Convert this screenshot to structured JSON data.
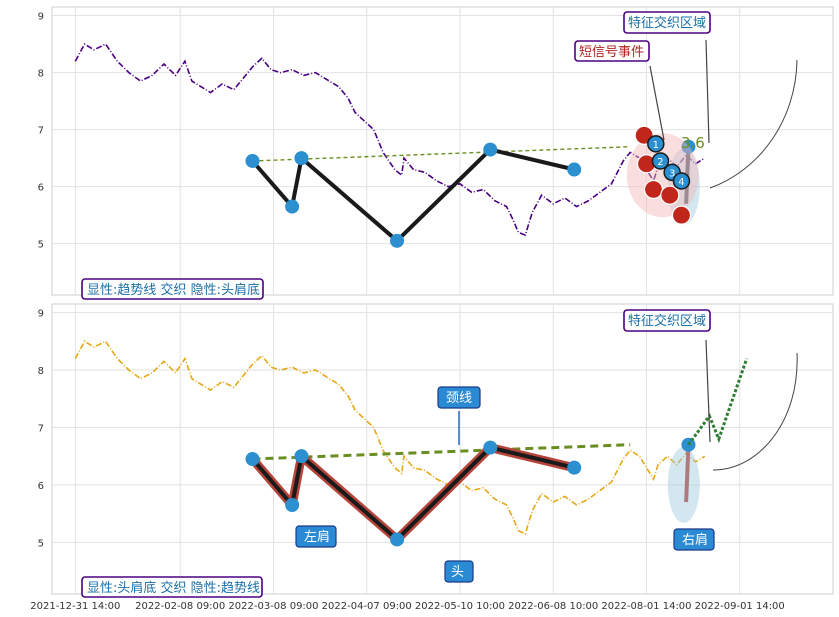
{
  "chart_data": [
    {
      "type": "line",
      "panel": "top",
      "ylim": [
        4.1,
        9.15
      ],
      "yticks": [
        5,
        6,
        7,
        8,
        9
      ],
      "price_series": {
        "style": "dash-dot",
        "color": "#4b0082",
        "points": [
          [
            1.0,
            8.2
          ],
          [
            1.4,
            8.5
          ],
          [
            1.8,
            8.4
          ],
          [
            2.3,
            8.5
          ],
          [
            2.8,
            8.2
          ],
          [
            3.3,
            8.0
          ],
          [
            3.8,
            7.85
          ],
          [
            4.3,
            7.95
          ],
          [
            4.8,
            8.15
          ],
          [
            5.3,
            7.95
          ],
          [
            5.7,
            8.2
          ],
          [
            6.0,
            7.85
          ],
          [
            6.4,
            7.75
          ],
          [
            6.8,
            7.65
          ],
          [
            7.3,
            7.8
          ],
          [
            7.8,
            7.7
          ],
          [
            8.2,
            7.9
          ],
          [
            8.6,
            8.1
          ],
          [
            9.0,
            8.25
          ],
          [
            9.4,
            8.05
          ],
          [
            9.8,
            8.0
          ],
          [
            10.3,
            8.05
          ],
          [
            10.8,
            7.95
          ],
          [
            11.3,
            8.0
          ],
          [
            11.9,
            7.85
          ],
          [
            12.3,
            7.75
          ],
          [
            12.7,
            7.55
          ],
          [
            13.0,
            7.3
          ],
          [
            13.4,
            7.15
          ],
          [
            13.8,
            7.0
          ],
          [
            14.2,
            6.6
          ],
          [
            14.7,
            6.3
          ],
          [
            15.0,
            6.2
          ],
          [
            15.1,
            6.5
          ],
          [
            15.5,
            6.3
          ],
          [
            16.0,
            6.25
          ],
          [
            16.5,
            6.1
          ],
          [
            17.0,
            6.0
          ],
          [
            17.5,
            6.05
          ],
          [
            18.0,
            5.9
          ],
          [
            18.5,
            5.95
          ],
          [
            19.0,
            5.75
          ],
          [
            19.5,
            5.65
          ],
          [
            19.8,
            5.4
          ],
          [
            20.0,
            5.2
          ],
          [
            20.3,
            5.15
          ],
          [
            20.6,
            5.55
          ],
          [
            21.0,
            5.85
          ],
          [
            21.5,
            5.7
          ],
          [
            22.0,
            5.8
          ],
          [
            22.5,
            5.65
          ],
          [
            23.0,
            5.75
          ],
          [
            23.5,
            5.9
          ],
          [
            24.0,
            6.05
          ],
          [
            24.5,
            6.45
          ],
          [
            24.8,
            6.6
          ],
          [
            25.2,
            6.5
          ],
          [
            25.5,
            6.3
          ],
          [
            25.8,
            6.1
          ],
          [
            26.0,
            6.35
          ],
          [
            26.4,
            6.5
          ],
          [
            26.8,
            6.35
          ],
          [
            27.2,
            6.55
          ],
          [
            27.6,
            6.4
          ],
          [
            28.0,
            6.5
          ]
        ]
      },
      "pattern_points": [
        [
          8.6,
          6.45
        ],
        [
          10.3,
          5.65
        ],
        [
          10.7,
          6.5
        ],
        [
          14.8,
          5.05
        ],
        [
          18.8,
          6.65
        ],
        [
          22.4,
          6.3
        ],
        [
          25.5,
          6.8
        ],
        [
          27.2,
          5.7
        ],
        [
          27.3,
          6.7
        ]
      ],
      "neckline": [
        [
          8.6,
          6.45
        ],
        [
          24.8,
          6.7
        ]
      ],
      "annotations": {
        "legend": "显性:趋势线 交织 隐性:头肩底",
        "zone_label": "特征交织区域",
        "signal_label": "短信号事件",
        "value_label": "3.6",
        "markers": [
          "1",
          "2",
          "3",
          "4"
        ]
      }
    },
    {
      "type": "line",
      "panel": "bottom",
      "ylim": [
        4.1,
        9.15
      ],
      "yticks": [
        5,
        6,
        7,
        8,
        9
      ],
      "xtick_labels": [
        "2021-12-31 14:00",
        "2022-02-08 09:00",
        "2022-03-08 09:00",
        "2022-04-07 09:00",
        "2022-05-10 10:00",
        "2022-06-08 10:00",
        "2022-08-01 14:00",
        "2022-09-01 14:00"
      ],
      "price_series": {
        "style": "dash-dot",
        "color": "#e6a817",
        "points": [
          [
            1.0,
            8.2
          ],
          [
            1.4,
            8.5
          ],
          [
            1.8,
            8.4
          ],
          [
            2.3,
            8.5
          ],
          [
            2.8,
            8.2
          ],
          [
            3.3,
            8.0
          ],
          [
            3.8,
            7.85
          ],
          [
            4.3,
            7.95
          ],
          [
            4.8,
            8.15
          ],
          [
            5.3,
            7.95
          ],
          [
            5.7,
            8.2
          ],
          [
            6.0,
            7.85
          ],
          [
            6.4,
            7.75
          ],
          [
            6.8,
            7.65
          ],
          [
            7.3,
            7.8
          ],
          [
            7.8,
            7.7
          ],
          [
            8.2,
            7.9
          ],
          [
            8.6,
            8.1
          ],
          [
            9.0,
            8.25
          ],
          [
            9.4,
            8.05
          ],
          [
            9.8,
            8.0
          ],
          [
            10.3,
            8.05
          ],
          [
            10.8,
            7.95
          ],
          [
            11.3,
            8.0
          ],
          [
            11.9,
            7.85
          ],
          [
            12.3,
            7.75
          ],
          [
            12.7,
            7.55
          ],
          [
            13.0,
            7.3
          ],
          [
            13.4,
            7.15
          ],
          [
            13.8,
            7.0
          ],
          [
            14.2,
            6.6
          ],
          [
            14.7,
            6.3
          ],
          [
            15.0,
            6.2
          ],
          [
            15.1,
            6.5
          ],
          [
            15.5,
            6.3
          ],
          [
            16.0,
            6.25
          ],
          [
            16.5,
            6.1
          ],
          [
            17.0,
            6.0
          ],
          [
            17.5,
            6.05
          ],
          [
            18.0,
            5.9
          ],
          [
            18.5,
            5.95
          ],
          [
            19.0,
            5.75
          ],
          [
            19.5,
            5.65
          ],
          [
            19.8,
            5.4
          ],
          [
            20.0,
            5.2
          ],
          [
            20.3,
            5.15
          ],
          [
            20.6,
            5.55
          ],
          [
            21.0,
            5.85
          ],
          [
            21.5,
            5.7
          ],
          [
            22.0,
            5.8
          ],
          [
            22.5,
            5.65
          ],
          [
            23.0,
            5.75
          ],
          [
            23.5,
            5.9
          ],
          [
            24.0,
            6.05
          ],
          [
            24.5,
            6.45
          ],
          [
            24.8,
            6.6
          ],
          [
            25.2,
            6.5
          ],
          [
            25.5,
            6.3
          ],
          [
            25.8,
            6.1
          ],
          [
            26.0,
            6.35
          ],
          [
            26.4,
            6.5
          ],
          [
            26.8,
            6.35
          ],
          [
            27.2,
            6.55
          ],
          [
            27.6,
            6.4
          ],
          [
            28.0,
            6.5
          ]
        ]
      },
      "pattern_points": [
        [
          8.6,
          6.45
        ],
        [
          10.3,
          5.65
        ],
        [
          10.7,
          6.5
        ],
        [
          14.8,
          5.05
        ],
        [
          18.8,
          6.65
        ],
        [
          22.4,
          6.3
        ],
        [
          25.5,
          6.8
        ],
        [
          27.2,
          5.7
        ],
        [
          27.3,
          6.7
        ]
      ],
      "neckline": [
        [
          8.6,
          6.45
        ],
        [
          24.8,
          6.7
        ]
      ],
      "annotations": {
        "legend": "显性:头肩底 交织 隐性:趋势线",
        "zone_label": "特征交织区域",
        "neck_label": "颈线",
        "left_shoulder": "左肩",
        "head": "头",
        "right_shoulder": "右肩"
      }
    }
  ]
}
